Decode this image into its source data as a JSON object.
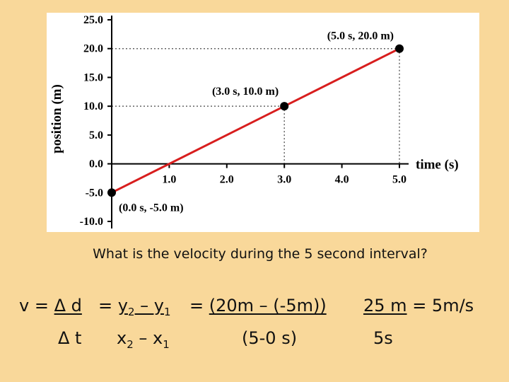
{
  "chart_data": {
    "type": "line",
    "xlabel": "time (s)",
    "ylabel": "position (m)",
    "xlim": [
      0.0,
      5.0
    ],
    "ylim": [
      -10.0,
      25.0
    ],
    "x_ticks": [
      "1.0",
      "2.0",
      "3.0",
      "4.0",
      "5.0"
    ],
    "y_ticks": [
      "25.0",
      "20.0",
      "15.0",
      "10.0",
      "5.0",
      "0.0",
      "-5.0",
      "-10.0"
    ],
    "grid": false,
    "series": [
      {
        "color": "#d81e1e",
        "x": [
          0.0,
          5.0
        ],
        "y": [
          -5.0,
          20.0
        ]
      }
    ],
    "points": [
      {
        "x": 0.0,
        "y": -5.0,
        "label": "(0.0 s, -5.0 m)"
      },
      {
        "x": 3.0,
        "y": 10.0,
        "label": "(3.0 s, 10.0 m)"
      },
      {
        "x": 5.0,
        "y": 20.0,
        "label": "(5.0 s, 20.0 m)"
      }
    ]
  },
  "question": "What is the velocity during the 5 second interval?",
  "equation": {
    "v_eq": "v =",
    "delta_d": "Δ d",
    "delta_t": "Δ t",
    "eq2": "=",
    "y_top": "y",
    "y_sub2": "2",
    "minus1": " – y",
    "y_sub1": "1",
    "x_bot": "x",
    "x_sub2": "2",
    "minus2": " – x",
    "x_sub1": "1",
    "eq3": "=",
    "num_expr": "(20m – (-5m))",
    "den_expr": "(5-0 s)",
    "result_num": "25 m",
    "result_den": "5s",
    "result": "= 5m/s"
  },
  "colors": {
    "background": "#f9d89a",
    "line": "#d81e1e"
  }
}
